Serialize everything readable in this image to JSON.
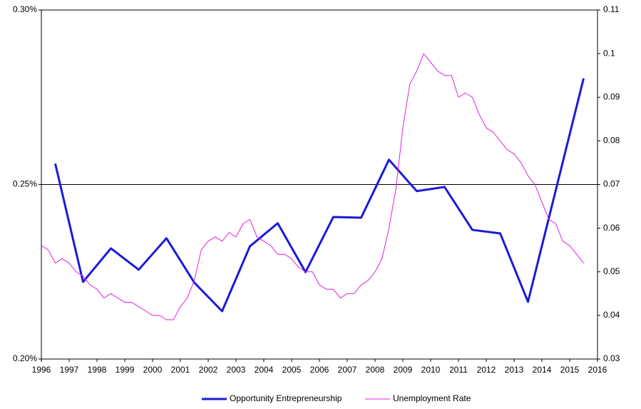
{
  "chart_data": {
    "type": "line",
    "xlim": [
      1996,
      2016
    ],
    "xticks": [
      1996,
      1997,
      1998,
      1999,
      2000,
      2001,
      2002,
      2003,
      2004,
      2005,
      2006,
      2007,
      2008,
      2009,
      2010,
      2011,
      2012,
      2013,
      2014,
      2015,
      2016
    ],
    "ylim": [
      0.2,
      0.3
    ],
    "yticks": [
      {
        "value": 0.2,
        "label": "0.20%"
      },
      {
        "value": 0.25,
        "label": "0.25%"
      },
      {
        "value": 0.3,
        "label": "0.30%"
      }
    ],
    "y2lim": [
      0.03,
      0.11
    ],
    "y2ticks": [
      0.03,
      0.04,
      0.05,
      0.06,
      0.07,
      0.08,
      0.09,
      0.1,
      0.11
    ],
    "grid": true,
    "legend": "bottom",
    "series": [
      {
        "name": "Opportunity Entrepreneurship",
        "color": "#1a1ad8",
        "width": 3,
        "x": [
          1996.5,
          1997.5,
          1998.5,
          1999.5,
          2000.5,
          2001.5,
          2002.5,
          2003.5,
          2004.5,
          2005.5,
          2006.5,
          2007.5,
          2008.5,
          2009.5,
          2010.5,
          2011.5,
          2012.5,
          2013.5,
          2014.5,
          2015.5
        ],
        "values": [
          0.256,
          0.2221,
          0.2317,
          0.2256,
          0.2346,
          0.2219,
          0.2137,
          0.2323,
          0.2389,
          0.2249,
          0.2407,
          0.2405,
          0.2571,
          0.2481,
          0.2493,
          0.237,
          0.236,
          0.2164,
          0.2484,
          0.2804
        ]
      },
      {
        "name": "Unemployment Rate",
        "color": "#e020e0",
        "width": 1,
        "axis": "y2",
        "x": [
          1996,
          1996.25,
          1996.5,
          1996.75,
          1997,
          1997.25,
          1997.5,
          1997.75,
          1998,
          1998.25,
          1998.5,
          1998.75,
          1999,
          1999.25,
          1999.5,
          1999.75,
          2000,
          2000.25,
          2000.5,
          2000.75,
          2001,
          2001.25,
          2001.5,
          2001.75,
          2002,
          2002.25,
          2002.5,
          2002.75,
          2003,
          2003.25,
          2003.5,
          2003.75,
          2004,
          2004.25,
          2004.5,
          2004.75,
          2005,
          2005.25,
          2005.5,
          2005.75,
          2006,
          2006.25,
          2006.5,
          2006.75,
          2007,
          2007.25,
          2007.5,
          2007.75,
          2008,
          2008.25,
          2008.5,
          2008.75,
          2009,
          2009.25,
          2009.5,
          2009.75,
          2010,
          2010.25,
          2010.5,
          2010.75,
          2011,
          2011.25,
          2011.5,
          2011.75,
          2012,
          2012.25,
          2012.5,
          2012.75,
          2013,
          2013.25,
          2013.5,
          2013.75,
          2014,
          2014.25,
          2014.5,
          2014.75,
          2015,
          2015.25,
          2015.5
        ],
        "values": [
          0.056,
          0.055,
          0.052,
          0.053,
          0.052,
          0.05,
          0.049,
          0.047,
          0.046,
          0.044,
          0.045,
          0.044,
          0.043,
          0.043,
          0.042,
          0.041,
          0.04,
          0.04,
          0.039,
          0.039,
          0.042,
          0.044,
          0.048,
          0.055,
          0.057,
          0.058,
          0.057,
          0.059,
          0.058,
          0.061,
          0.062,
          0.058,
          0.057,
          0.056,
          0.054,
          0.054,
          0.053,
          0.051,
          0.05,
          0.05,
          0.047,
          0.046,
          0.046,
          0.044,
          0.045,
          0.045,
          0.047,
          0.048,
          0.05,
          0.053,
          0.06,
          0.069,
          0.083,
          0.093,
          0.096,
          0.1,
          0.098,
          0.096,
          0.095,
          0.095,
          0.09,
          0.091,
          0.09,
          0.086,
          0.083,
          0.082,
          0.08,
          0.078,
          0.077,
          0.075,
          0.072,
          0.07,
          0.066,
          0.062,
          0.061,
          0.057,
          0.056,
          0.054,
          0.052
        ]
      }
    ]
  }
}
